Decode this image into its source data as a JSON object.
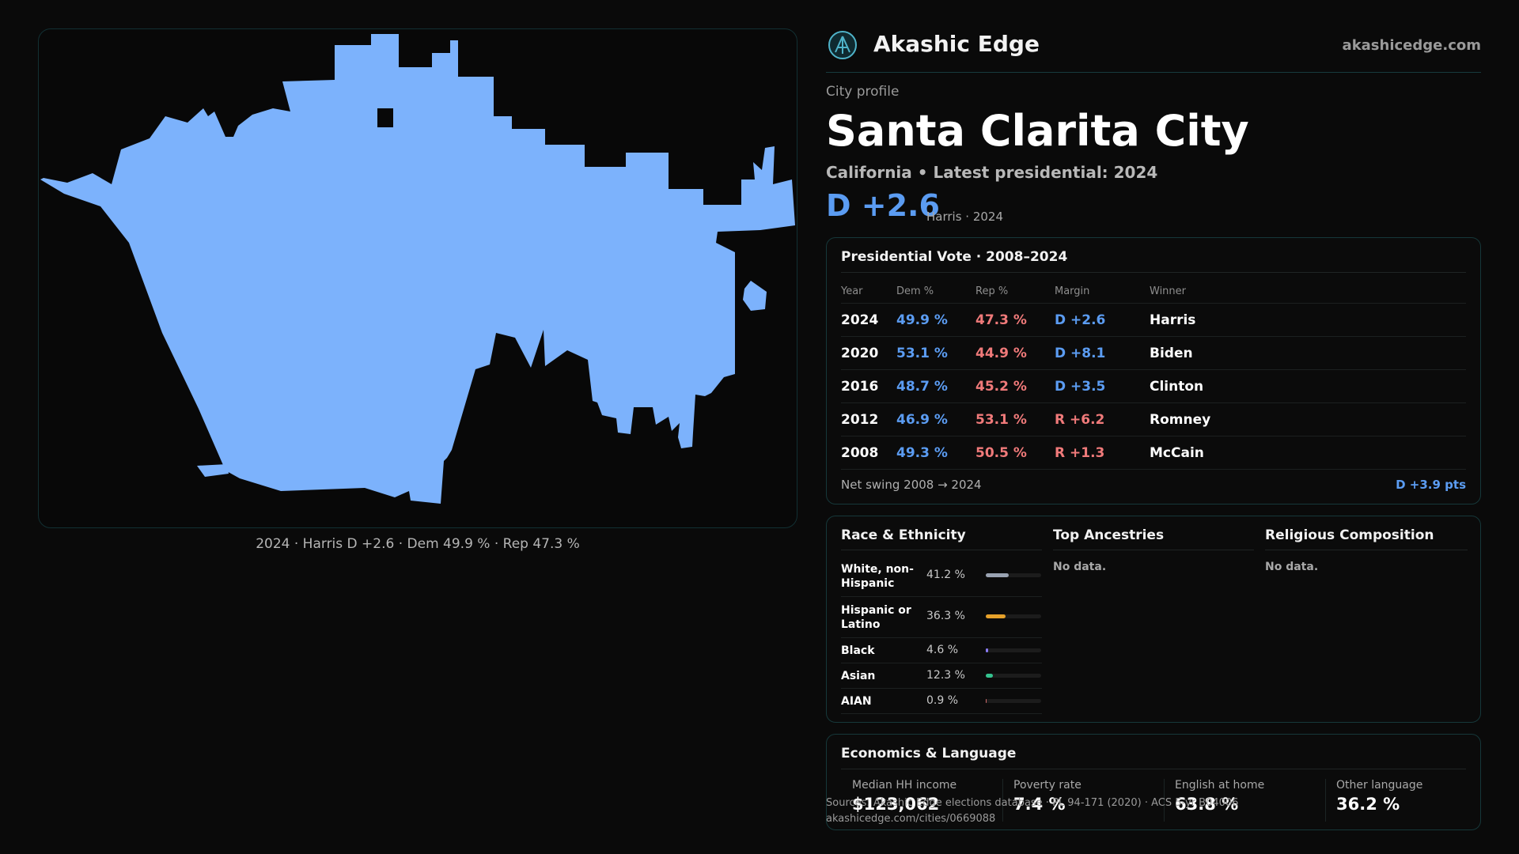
{
  "brand": {
    "name": "Akashic Edge",
    "url": "akashicedge.com",
    "logo_icon": "akashic-edge-logo-icon",
    "accent": "#4fb3c9"
  },
  "map": {
    "caption": "2024 · Harris D +2.6 · Dem 49.9 % · Rep 47.3 %",
    "fill_color": "#7cb2fc"
  },
  "profile": {
    "kicker": "City profile",
    "title": "Santa Clarita City",
    "subtitle": "California • Latest presidential: 2024",
    "margin": "D +2.6",
    "margin_sub": "Harris · 2024"
  },
  "vote": {
    "title": "Presidential Vote · 2008–2024",
    "headers": {
      "year": "Year",
      "dem": "Dem %",
      "rep": "Rep %",
      "margin": "Margin",
      "winner": "Winner"
    },
    "rows": [
      {
        "year": "2024",
        "dem": "49.9 %",
        "rep": "47.3 %",
        "margin": "D +2.6",
        "party": "D",
        "winner": "Harris"
      },
      {
        "year": "2020",
        "dem": "53.1 %",
        "rep": "44.9 %",
        "margin": "D +8.1",
        "party": "D",
        "winner": "Biden"
      },
      {
        "year": "2016",
        "dem": "48.7 %",
        "rep": "45.2 %",
        "margin": "D +3.5",
        "party": "D",
        "winner": "Clinton"
      },
      {
        "year": "2012",
        "dem": "46.9 %",
        "rep": "53.1 %",
        "margin": "R +6.2",
        "party": "R",
        "winner": "Romney"
      },
      {
        "year": "2008",
        "dem": "49.3 %",
        "rep": "50.5 %",
        "margin": "R +1.3",
        "party": "R",
        "winner": "McCain"
      }
    ],
    "swing_label": "Net swing 2008 → 2024",
    "swing_value": "D +3.9 pts"
  },
  "race": {
    "title": "Race & Ethnicity",
    "rows": [
      {
        "label": "White, non-Hispanic",
        "pct": "41.2 %",
        "share": 0.412,
        "color": "#9aa3b2"
      },
      {
        "label": "Hispanic or Latino",
        "pct": "36.3 %",
        "share": 0.363,
        "color": "#e6a12a"
      },
      {
        "label": "Black",
        "pct": "4.6 %",
        "share": 0.046,
        "color": "#8b7cf6"
      },
      {
        "label": "Asian",
        "pct": "12.3 %",
        "share": 0.123,
        "color": "#34c38f"
      },
      {
        "label": "AIAN",
        "pct": "0.9 %",
        "share": 0.009,
        "color": "#d06a6a"
      }
    ]
  },
  "ancestry": {
    "title": "Top Ancestries",
    "empty": "No data."
  },
  "religion": {
    "title": "Religious Composition",
    "empty": "No data."
  },
  "econ": {
    "title": "Economics & Language",
    "items": [
      {
        "label": "Median HH income",
        "value": "$123,062"
      },
      {
        "label": "Poverty rate",
        "value": "7.4 %"
      },
      {
        "label": "English at home",
        "value": "63.8 %"
      },
      {
        "label": "Other language",
        "value": "36.2 %"
      }
    ]
  },
  "source": {
    "line1": "Sources: Akashic Edge elections database · PL 94-171 (2020) · ACS 5-yr B04006",
    "line2": "akashicedge.com/cities/0669088"
  },
  "colors": {
    "dem": "#5b9cf2",
    "rep": "#f07a7a",
    "background": "#0a0a0a",
    "card_border": "#16383a"
  }
}
